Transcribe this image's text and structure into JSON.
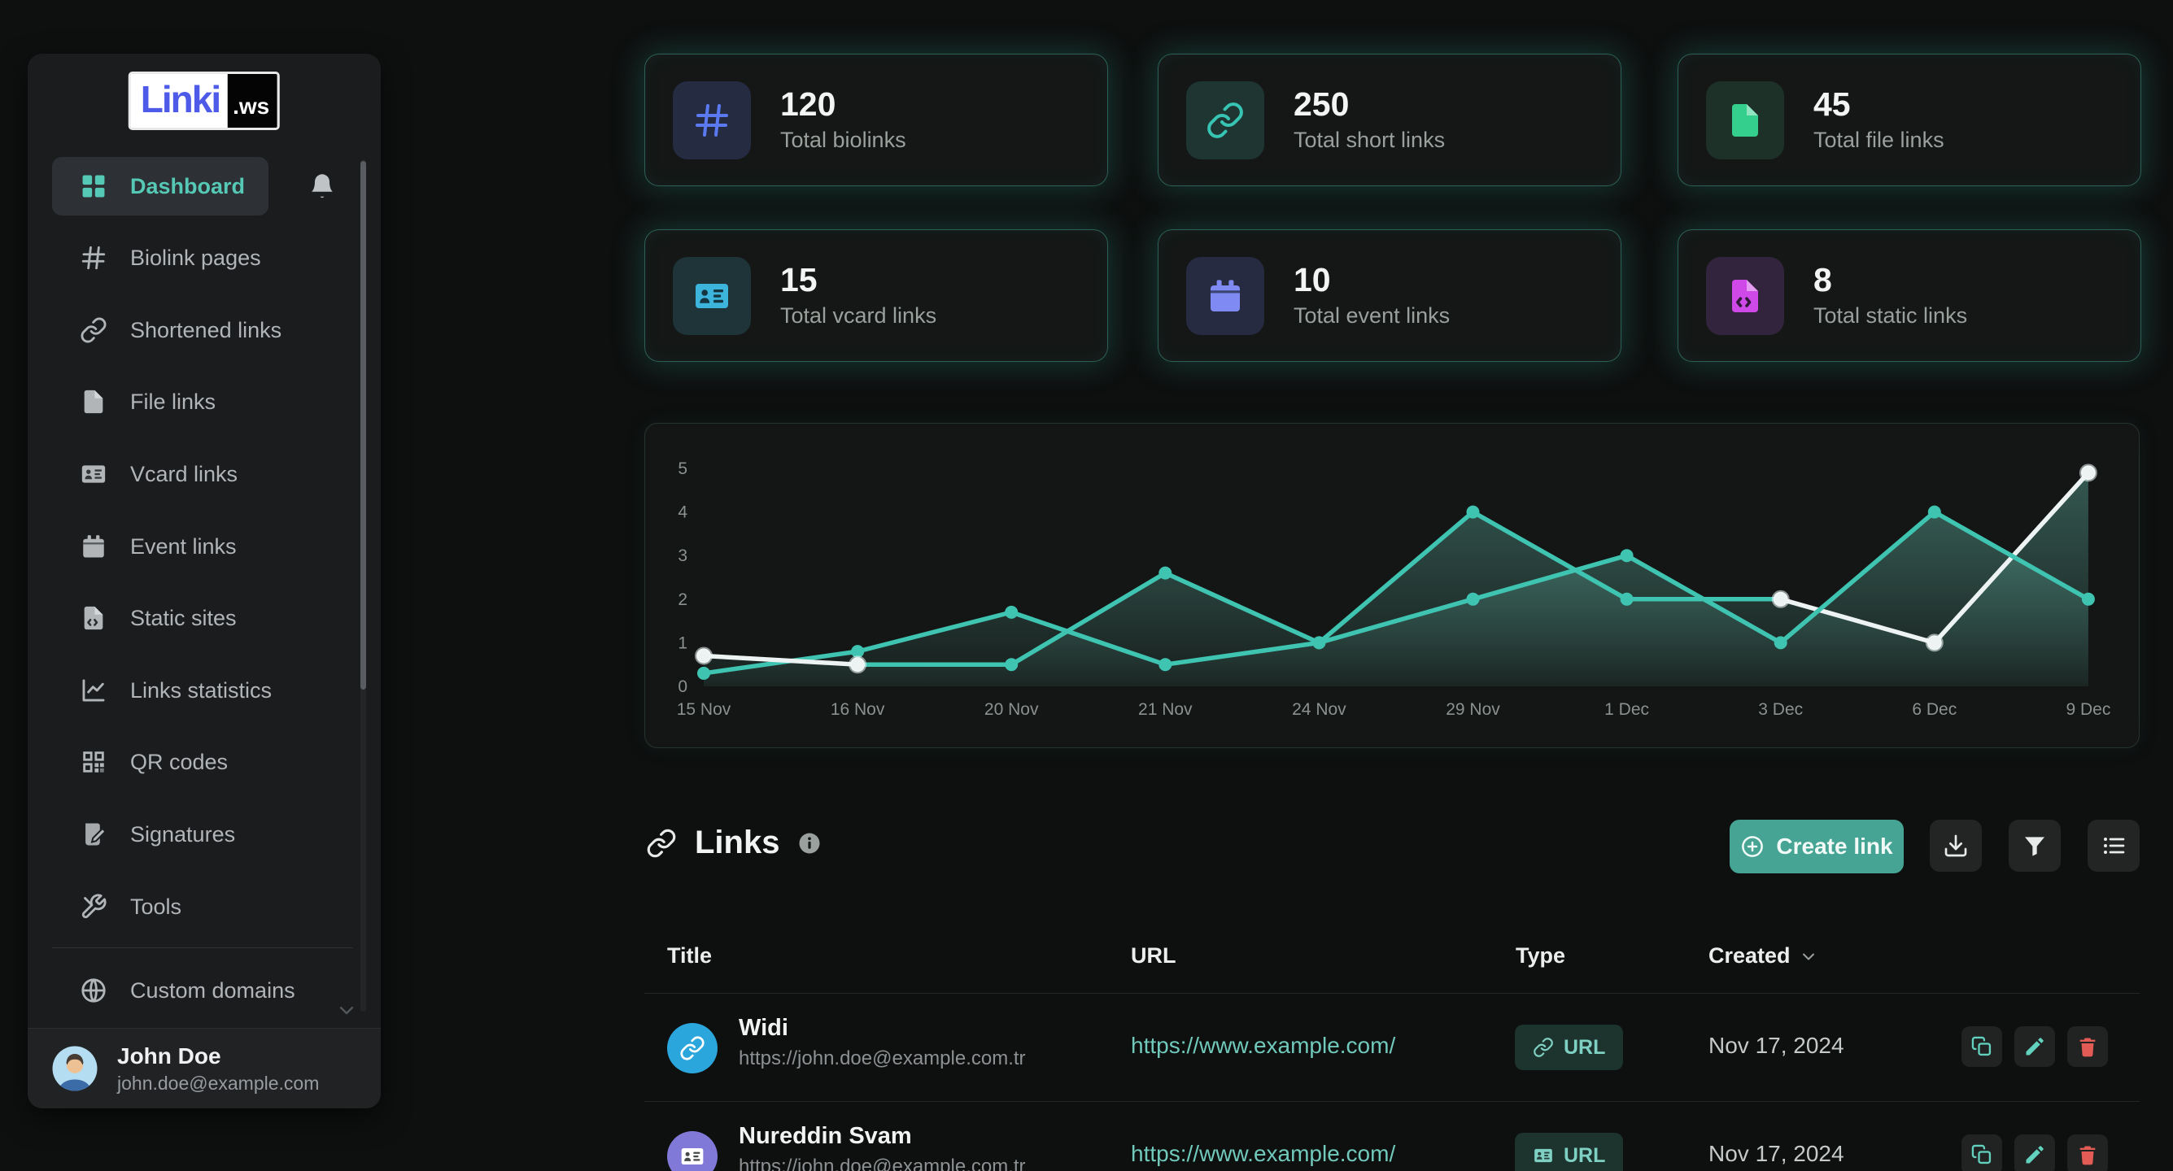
{
  "sidebar": {
    "logo": {
      "primary": "Linki",
      "suffix": ".ws"
    },
    "items": [
      {
        "icon": "dashboard-icon",
        "label": "Dashboard",
        "active": true
      },
      {
        "icon": "hash-icon",
        "label": "Biolink pages"
      },
      {
        "icon": "link-icon",
        "label": "Shortened links"
      },
      {
        "icon": "file-icon",
        "label": "File links"
      },
      {
        "icon": "vcard-icon",
        "label": "Vcard links"
      },
      {
        "icon": "calendar-icon",
        "label": "Event links"
      },
      {
        "icon": "static-site-icon",
        "label": "Static sites"
      },
      {
        "icon": "stats-icon",
        "label": "Links statistics"
      },
      {
        "icon": "qr-icon",
        "label": "QR codes"
      },
      {
        "icon": "signature-icon",
        "label": "Signatures"
      },
      {
        "icon": "tools-icon",
        "label": "Tools"
      }
    ],
    "secondary_items": [
      {
        "icon": "globe-icon",
        "label": "Custom domains"
      }
    ],
    "user": {
      "name": "John Doe",
      "email": "john.doe@example.com"
    }
  },
  "stat_cards": [
    {
      "icon": "hash-icon",
      "icon_color": "#5b79f0",
      "tile_bg": "#252b41",
      "value": "120",
      "label": "Total biolinks"
    },
    {
      "icon": "link-icon",
      "icon_color": "#38c4b2",
      "tile_bg": "#1e3531",
      "value": "250",
      "label": "Total short links"
    },
    {
      "icon": "file-icon",
      "icon_color": "#35cf8d",
      "tile_bg": "#1e3129",
      "value": "45",
      "label": "Total file links"
    },
    {
      "icon": "vcard-icon",
      "icon_color": "#3cb4dc",
      "tile_bg": "#1f3439",
      "value": "15",
      "label": "Total vcard links"
    },
    {
      "icon": "calendar-icon",
      "icon_color": "#7f8af2",
      "tile_bg": "#272b42",
      "value": "10",
      "label": "Total event links"
    },
    {
      "icon": "static-file-icon",
      "icon_color": "#cf49e8",
      "tile_bg": "#32243c",
      "value": "8",
      "label": "Total static links"
    }
  ],
  "chart_data": {
    "type": "line",
    "x_labels": [
      "15 Nov",
      "16 Nov",
      "20 Nov",
      "21 Nov",
      "24 Nov",
      "29 Nov",
      "1 Dec",
      "3 Dec",
      "6 Dec",
      "9 Dec"
    ],
    "y_ticks": [
      0,
      1,
      2,
      3,
      4,
      5
    ],
    "ylim": [
      0,
      5
    ],
    "grid": false,
    "legend": "none",
    "area_fill": true,
    "colors": {
      "teal": "#3fc4b2",
      "white": "#edf3f2",
      "area": "#62b4a4"
    },
    "series": [
      {
        "name": "series-1",
        "values": [
          0.3,
          0.8,
          1.7,
          0.5,
          1.0,
          4.0,
          2.0,
          2.0,
          1.0,
          4.9
        ],
        "segment_colors": [
          "teal",
          "teal",
          "teal",
          "teal",
          "teal",
          "teal",
          "teal",
          "white",
          "white"
        ],
        "dot_colors": [
          "teal",
          "teal",
          "teal",
          "teal",
          "teal",
          "teal",
          "teal",
          "white",
          "white",
          "white"
        ]
      },
      {
        "name": "series-2",
        "values": [
          0.7,
          0.5,
          0.5,
          2.6,
          1.0,
          2.0,
          3.0,
          1.0,
          4.0,
          2.0
        ],
        "segment_colors": [
          "white",
          "teal",
          "teal",
          "teal",
          "teal",
          "teal",
          "teal",
          "teal",
          "teal"
        ],
        "dot_colors": [
          "white",
          "white",
          "teal",
          "teal",
          "teal",
          "teal",
          "teal",
          "teal",
          "teal",
          "teal"
        ]
      }
    ]
  },
  "links": {
    "title": "Links",
    "create_label": "Create link",
    "toolbar": [
      {
        "icon": "download-icon",
        "name": "export-button"
      },
      {
        "icon": "filter-icon",
        "name": "filter-button"
      },
      {
        "icon": "list-icon",
        "name": "view-list-button"
      }
    ]
  },
  "table": {
    "columns": [
      "Title",
      "URL",
      "Type",
      "Created"
    ],
    "rows": [
      {
        "avatar_icon": "link-icon",
        "avatar_color": "#2ba6dc",
        "title": "Widi",
        "subtitle": "https://john.doe@example.com.tr",
        "url": "https://www.example.com/",
        "type_label": "URL",
        "type_icon": "link-icon",
        "created": "Nov 17, 2024"
      },
      {
        "avatar_icon": "vcard-icon",
        "avatar_color": "#8079d8",
        "title": "Nureddin Svam",
        "subtitle": "https://john.doe@example.com.tr",
        "url": "https://www.example.com/",
        "type_label": "URL",
        "type_icon": "vcard-icon",
        "created": "Nov 17, 2024"
      }
    ]
  }
}
